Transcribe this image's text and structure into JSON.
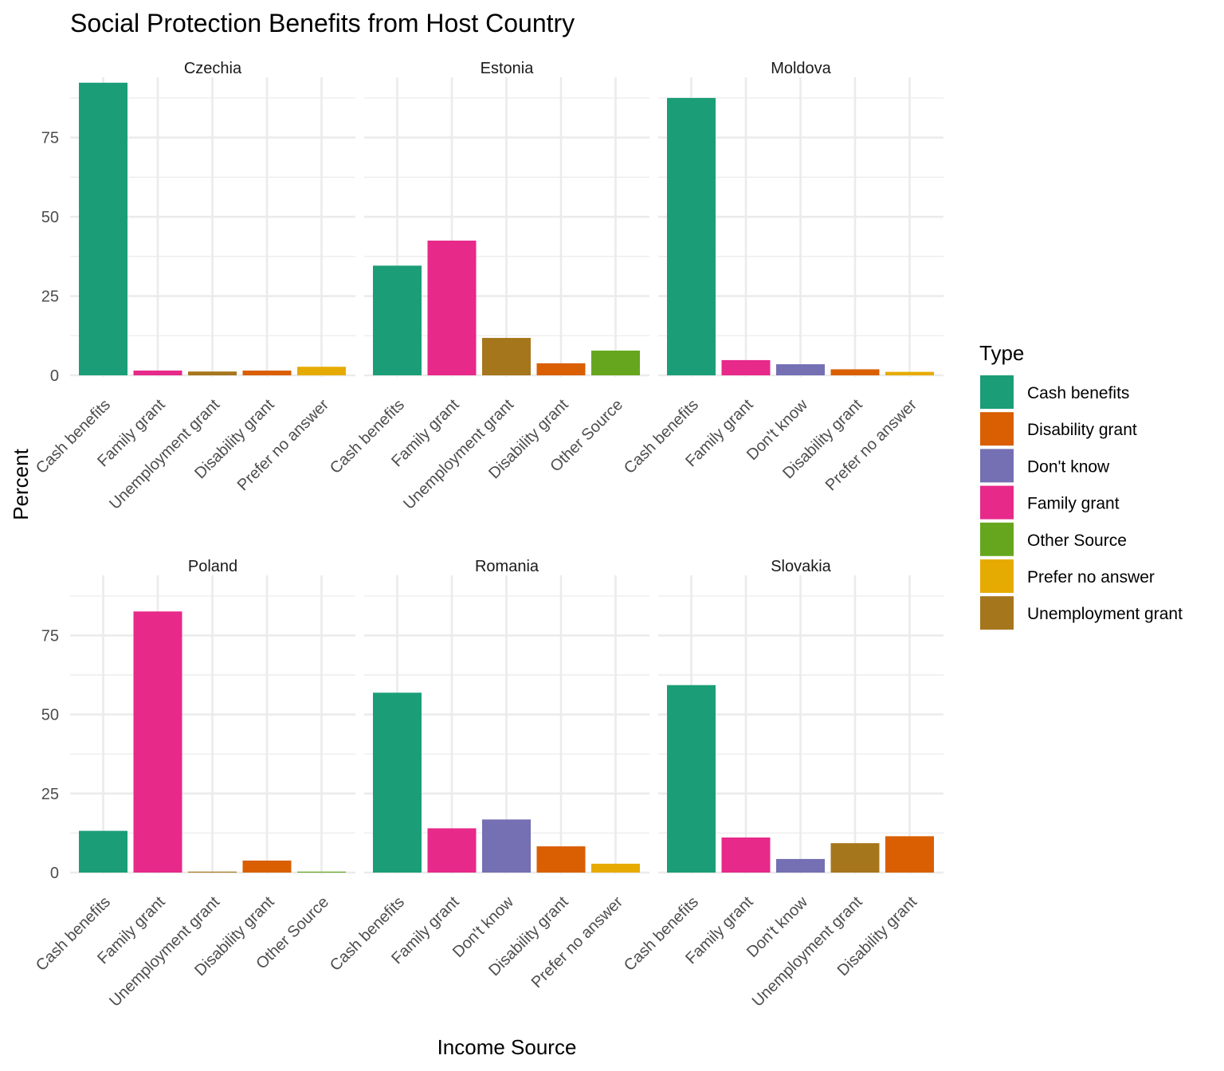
{
  "chart_data": {
    "type": "bar",
    "title": "Social Protection Benefits from Host Country",
    "xlabel": "Income Source",
    "ylabel": "Percent",
    "ylim": [
      0,
      92
    ],
    "yticks": [
      0,
      25,
      50,
      75
    ],
    "grid": true,
    "legend": {
      "title": "Type",
      "position": "right",
      "entries": [
        {
          "name": "Cash benefits",
          "color": "#1b9e77"
        },
        {
          "name": "Disability grant",
          "color": "#d95f02"
        },
        {
          "name": "Don't know",
          "color": "#7570b3"
        },
        {
          "name": "Family grant",
          "color": "#e7298a"
        },
        {
          "name": "Other Source",
          "color": "#66a61e"
        },
        {
          "name": "Prefer no answer",
          "color": "#e6ab02"
        },
        {
          "name": "Unemployment grant",
          "color": "#a6761d"
        }
      ]
    },
    "panels": [
      {
        "name": "Czechia",
        "categories": [
          "Cash benefits",
          "Family grant",
          "Unemployment grant",
          "Disability grant",
          "Prefer no answer"
        ],
        "values": [
          92.3,
          1.5,
          1.2,
          1.5,
          2.7
        ]
      },
      {
        "name": "Estonia",
        "categories": [
          "Cash benefits",
          "Family grant",
          "Unemployment grant",
          "Disability grant",
          "Other Source"
        ],
        "values": [
          34.6,
          42.5,
          11.8,
          3.8,
          7.8
        ]
      },
      {
        "name": "Moldova",
        "categories": [
          "Cash benefits",
          "Family grant",
          "Don't know",
          "Disability grant",
          "Prefer no answer"
        ],
        "values": [
          87.5,
          4.8,
          3.5,
          1.9,
          1.1
        ]
      },
      {
        "name": "Poland",
        "categories": [
          "Cash benefits",
          "Family grant",
          "Unemployment grant",
          "Disability grant",
          "Other Source"
        ],
        "values": [
          13.2,
          82.6,
          0.3,
          3.8,
          0.3
        ]
      },
      {
        "name": "Romania",
        "categories": [
          "Cash benefits",
          "Family grant",
          "Don't know",
          "Disability grant",
          "Prefer no answer"
        ],
        "values": [
          56.9,
          14.0,
          16.8,
          8.3,
          2.8
        ]
      },
      {
        "name": "Slovakia",
        "categories": [
          "Cash benefits",
          "Family grant",
          "Don't know",
          "Unemployment grant",
          "Disability grant"
        ],
        "values": [
          59.3,
          11.1,
          4.3,
          9.3,
          11.5
        ]
      }
    ]
  }
}
